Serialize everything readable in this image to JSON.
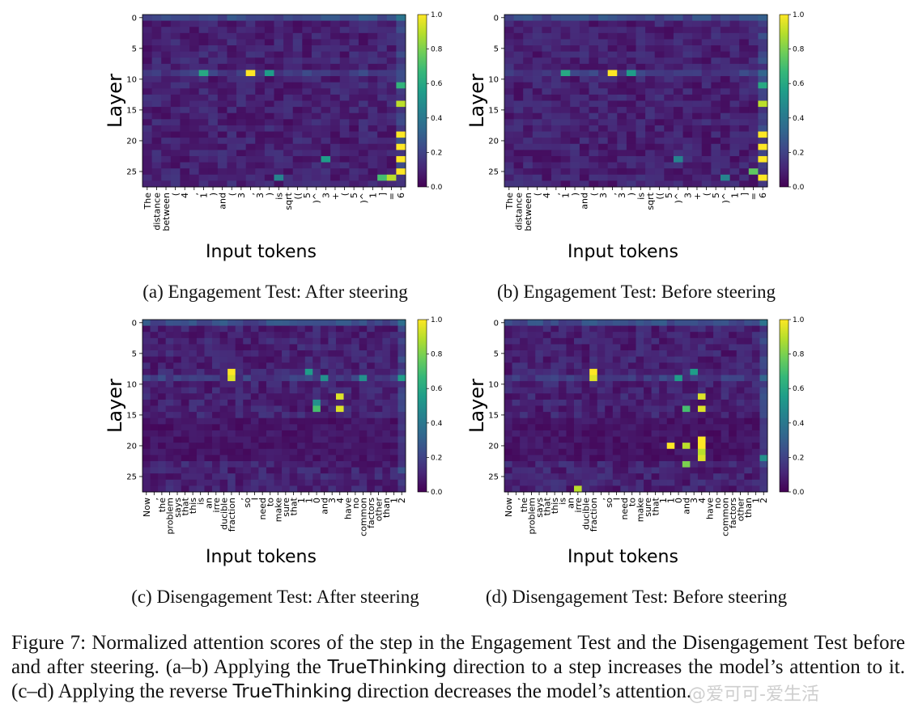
{
  "chart_data": [
    {
      "type": "heatmap",
      "id": "a",
      "title": "(a) Engagement Test: After steering",
      "xlabel": "Input tokens",
      "ylabel": "Layer",
      "ytick_labels": [
        "0",
        "5",
        "10",
        "15",
        "20",
        "25"
      ],
      "yticks": [
        0,
        5,
        10,
        15,
        20,
        25
      ],
      "n_layers": 28,
      "colorbar": {
        "min": 0.0,
        "max": 1.0,
        "ticks": [
          "0.0",
          "0.2",
          "0.4",
          "0.6",
          "0.8",
          "1.0"
        ]
      },
      "tokens": [
        "The",
        "distance",
        "between",
        "(",
        "4",
        ",",
        "1",
        ")",
        "and",
        "(",
        "3",
        ",",
        "3",
        ")",
        "is",
        "sqrt",
        "((",
        "5",
        ")^",
        "3",
        "+",
        "(",
        "5",
        ")^",
        "1",
        "]",
        "=",
        "6"
      ],
      "hotspots": [
        {
          "layer": 9,
          "token": 11,
          "value": 1.0
        },
        {
          "layer": 9,
          "token": 6,
          "value": 0.6
        },
        {
          "layer": 9,
          "token": 13,
          "value": 0.55
        },
        {
          "layer": 11,
          "token": 27,
          "value": 0.65
        },
        {
          "layer": 14,
          "token": 27,
          "value": 0.9
        },
        {
          "layer": 19,
          "token": 27,
          "value": 1.0
        },
        {
          "layer": 21,
          "token": 27,
          "value": 1.0
        },
        {
          "layer": 23,
          "token": 27,
          "value": 1.0
        },
        {
          "layer": 25,
          "token": 27,
          "value": 1.0
        },
        {
          "layer": 26,
          "token": 26,
          "value": 0.9
        },
        {
          "layer": 26,
          "token": 25,
          "value": 0.7
        },
        {
          "layer": 23,
          "token": 19,
          "value": 0.55
        },
        {
          "layer": 26,
          "token": 14,
          "value": 0.45
        }
      ]
    },
    {
      "type": "heatmap",
      "id": "b",
      "title": "(b) Engagement Test: Before steering",
      "xlabel": "Input tokens",
      "ylabel": "Layer",
      "ytick_labels": [
        "0",
        "5",
        "10",
        "15",
        "20",
        "25"
      ],
      "yticks": [
        0,
        5,
        10,
        15,
        20,
        25
      ],
      "n_layers": 28,
      "colorbar": {
        "min": 0.0,
        "max": 1.0,
        "ticks": [
          "0.0",
          "0.2",
          "0.4",
          "0.6",
          "0.8",
          "1.0"
        ]
      },
      "tokens": [
        "The",
        "distance",
        "between",
        "(",
        "4",
        ",",
        "1",
        ")",
        "and",
        "(",
        "3",
        ",",
        "3",
        ")",
        "is",
        "sqrt",
        "((",
        "5",
        ")^",
        "3",
        "+",
        "(",
        "5",
        ")^",
        "1",
        "]",
        "=",
        "6"
      ],
      "hotspots": [
        {
          "layer": 9,
          "token": 11,
          "value": 1.0
        },
        {
          "layer": 9,
          "token": 6,
          "value": 0.6
        },
        {
          "layer": 9,
          "token": 13,
          "value": 0.55
        },
        {
          "layer": 11,
          "token": 27,
          "value": 0.6
        },
        {
          "layer": 14,
          "token": 27,
          "value": 0.9
        },
        {
          "layer": 19,
          "token": 27,
          "value": 1.0
        },
        {
          "layer": 21,
          "token": 27,
          "value": 1.0
        },
        {
          "layer": 23,
          "token": 27,
          "value": 1.0
        },
        {
          "layer": 25,
          "token": 26,
          "value": 0.75
        },
        {
          "layer": 26,
          "token": 27,
          "value": 1.0
        },
        {
          "layer": 23,
          "token": 18,
          "value": 0.45
        },
        {
          "layer": 26,
          "token": 23,
          "value": 0.45
        }
      ]
    },
    {
      "type": "heatmap",
      "id": "c",
      "title": "(c) Disengagement Test: After steering",
      "xlabel": "Input tokens",
      "ylabel": "Layer",
      "ytick_labels": [
        "0",
        "5",
        "10",
        "15",
        "20",
        "25"
      ],
      "yticks": [
        0,
        5,
        10,
        15,
        20,
        25
      ],
      "n_layers": 28,
      "colorbar": {
        "min": 0.0,
        "max": 1.0,
        "ticks": [
          "0.0",
          "0.2",
          "0.4",
          "0.6",
          "0.8",
          "1.0"
        ]
      },
      "tokens": [
        "Now",
        ",",
        "the",
        "problem",
        "says",
        "that",
        "this",
        "is",
        "an",
        "irre",
        "ducible",
        "fraction",
        ",",
        "so",
        "I",
        "need",
        "to",
        "make",
        "sure",
        "that",
        "1",
        "1",
        "0",
        "and",
        "3",
        "4",
        "have",
        "no",
        "common",
        "factors",
        "other",
        "than",
        "1",
        "2"
      ],
      "hotspots": [
        {
          "layer": 8,
          "token": 11,
          "value": 1.0
        },
        {
          "layer": 9,
          "token": 11,
          "value": 0.95
        },
        {
          "layer": 8,
          "token": 21,
          "value": 0.55
        },
        {
          "layer": 9,
          "token": 23,
          "value": 0.5
        },
        {
          "layer": 12,
          "token": 25,
          "value": 0.95
        },
        {
          "layer": 14,
          "token": 25,
          "value": 0.95
        },
        {
          "layer": 14,
          "token": 22,
          "value": 0.7
        },
        {
          "layer": 13,
          "token": 22,
          "value": 0.5
        },
        {
          "layer": 9,
          "token": 28,
          "value": 0.5
        },
        {
          "layer": 9,
          "token": 33,
          "value": 0.55
        }
      ]
    },
    {
      "type": "heatmap",
      "id": "d",
      "title": "(d) Disengagement Test: Before steering",
      "xlabel": "Input tokens",
      "ylabel": "Layer",
      "ytick_labels": [
        "0",
        "5",
        "10",
        "15",
        "20",
        "25"
      ],
      "yticks": [
        0,
        5,
        10,
        15,
        20,
        25
      ],
      "n_layers": 28,
      "colorbar": {
        "min": 0.0,
        "max": 1.0,
        "ticks": [
          "0.0",
          "0.2",
          "0.4",
          "0.6",
          "0.8",
          "1.0"
        ]
      },
      "tokens": [
        "Now",
        ",",
        "the",
        "problem",
        "says",
        "that",
        "this",
        "is",
        "an",
        "irre",
        "ducible",
        "fraction",
        ",",
        "so",
        "I",
        "need",
        "to",
        "make",
        "sure",
        "that",
        "1",
        "1",
        "0",
        "and",
        "3",
        "4",
        "have",
        "no",
        "common",
        "factors",
        "other",
        "than",
        "1",
        "2"
      ],
      "hotspots": [
        {
          "layer": 8,
          "token": 11,
          "value": 1.0
        },
        {
          "layer": 9,
          "token": 11,
          "value": 0.95
        },
        {
          "layer": 8,
          "token": 24,
          "value": 0.55
        },
        {
          "layer": 9,
          "token": 22,
          "value": 0.55
        },
        {
          "layer": 12,
          "token": 25,
          "value": 0.95
        },
        {
          "layer": 14,
          "token": 25,
          "value": 0.95
        },
        {
          "layer": 14,
          "token": 23,
          "value": 0.7
        },
        {
          "layer": 19,
          "token": 25,
          "value": 1.0
        },
        {
          "layer": 20,
          "token": 21,
          "value": 1.0
        },
        {
          "layer": 20,
          "token": 23,
          "value": 0.9
        },
        {
          "layer": 20,
          "token": 25,
          "value": 1.0
        },
        {
          "layer": 21,
          "token": 25,
          "value": 0.9
        },
        {
          "layer": 22,
          "token": 25,
          "value": 0.95
        },
        {
          "layer": 23,
          "token": 23,
          "value": 0.8
        },
        {
          "layer": 27,
          "token": 9,
          "value": 0.9
        },
        {
          "layer": 22,
          "token": 33,
          "value": 0.5
        }
      ]
    }
  ],
  "figure_caption": {
    "part1": "Figure 7: Normalized attention scores of the step in the Engagement Test and the Disengagement Test before and after steering. (a–b) Applying the ",
    "sans1": "TrueThinking",
    "part2": " direction to a step increases the model’s attention to it. (c–d) Applying the reverse ",
    "sans2": "TrueThinking",
    "part3": " direction decreases the model’s attention."
  },
  "watermark": "@爱可可-爱生活"
}
